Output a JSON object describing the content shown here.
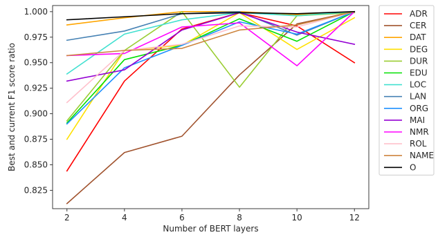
{
  "chart_data": {
    "type": "line",
    "xlabel": "Number of BERT layers",
    "ylabel": "Best and current F1 score ratio",
    "x": [
      2,
      4,
      6,
      8,
      10,
      12
    ],
    "xlim": [
      1.5,
      12.5
    ],
    "ylim": [
      0.807,
      1.006
    ],
    "xticks": [
      2,
      4,
      6,
      8,
      10,
      12
    ],
    "yticks": [
      0.825,
      0.85,
      0.875,
      0.9,
      0.925,
      0.95,
      0.975,
      1.0
    ],
    "ytick_labels": [
      "0.825",
      "0.850",
      "0.875",
      "0.900",
      "0.925",
      "0.950",
      "0.975",
      "1.000"
    ],
    "grid": false,
    "legend_placement": "outside-right",
    "series": [
      {
        "name": "ADR",
        "color": "#ff0000",
        "values": [
          0.844,
          0.932,
          0.983,
          0.999,
          0.986,
          0.95
        ]
      },
      {
        "name": "CER",
        "color": "#a0522d",
        "values": [
          0.812,
          0.862,
          0.878,
          0.938,
          0.988,
          1.0
        ]
      },
      {
        "name": "DAT",
        "color": "#ffa500",
        "values": [
          0.987,
          0.994,
          1.0,
          1.0,
          0.997,
          1.0
        ]
      },
      {
        "name": "DEG",
        "color": "#ffe000",
        "values": [
          0.875,
          0.962,
          0.967,
          0.999,
          0.963,
          0.994
        ]
      },
      {
        "name": "DUR",
        "color": "#9acd32",
        "values": [
          0.893,
          0.962,
          1.0,
          0.926,
          0.996,
          0.999
        ]
      },
      {
        "name": "EDU",
        "color": "#00e000",
        "values": [
          0.891,
          0.953,
          0.967,
          0.993,
          0.971,
          1.0
        ]
      },
      {
        "name": "LOC",
        "color": "#40e0d0",
        "values": [
          0.939,
          0.978,
          0.992,
          0.999,
          0.996,
          1.0
        ]
      },
      {
        "name": "LAN",
        "color": "#4682b4",
        "values": [
          0.972,
          0.981,
          0.998,
          1.0,
          0.977,
          1.0
        ]
      },
      {
        "name": "ORG",
        "color": "#1e90ff",
        "values": [
          0.89,
          0.945,
          0.967,
          0.99,
          0.978,
          1.0
        ]
      },
      {
        "name": "MAI",
        "color": "#9400d3",
        "values": [
          0.932,
          0.943,
          0.982,
          0.999,
          0.98,
          0.968
        ]
      },
      {
        "name": "NMR",
        "color": "#ff00ff",
        "values": [
          0.957,
          0.959,
          0.985,
          0.989,
          0.947,
          1.0
        ]
      },
      {
        "name": "ROL",
        "color": "#ffc0cb",
        "values": [
          0.911,
          0.962,
          0.968,
          0.986,
          0.985,
          1.0
        ]
      },
      {
        "name": "NAME",
        "color": "#cd853f",
        "values": [
          0.957,
          0.962,
          0.964,
          0.982,
          0.987,
          1.0
        ]
      },
      {
        "name": "O",
        "color": "#000000",
        "values": [
          0.992,
          0.995,
          0.998,
          0.999,
          0.998,
          1.0
        ]
      }
    ]
  }
}
